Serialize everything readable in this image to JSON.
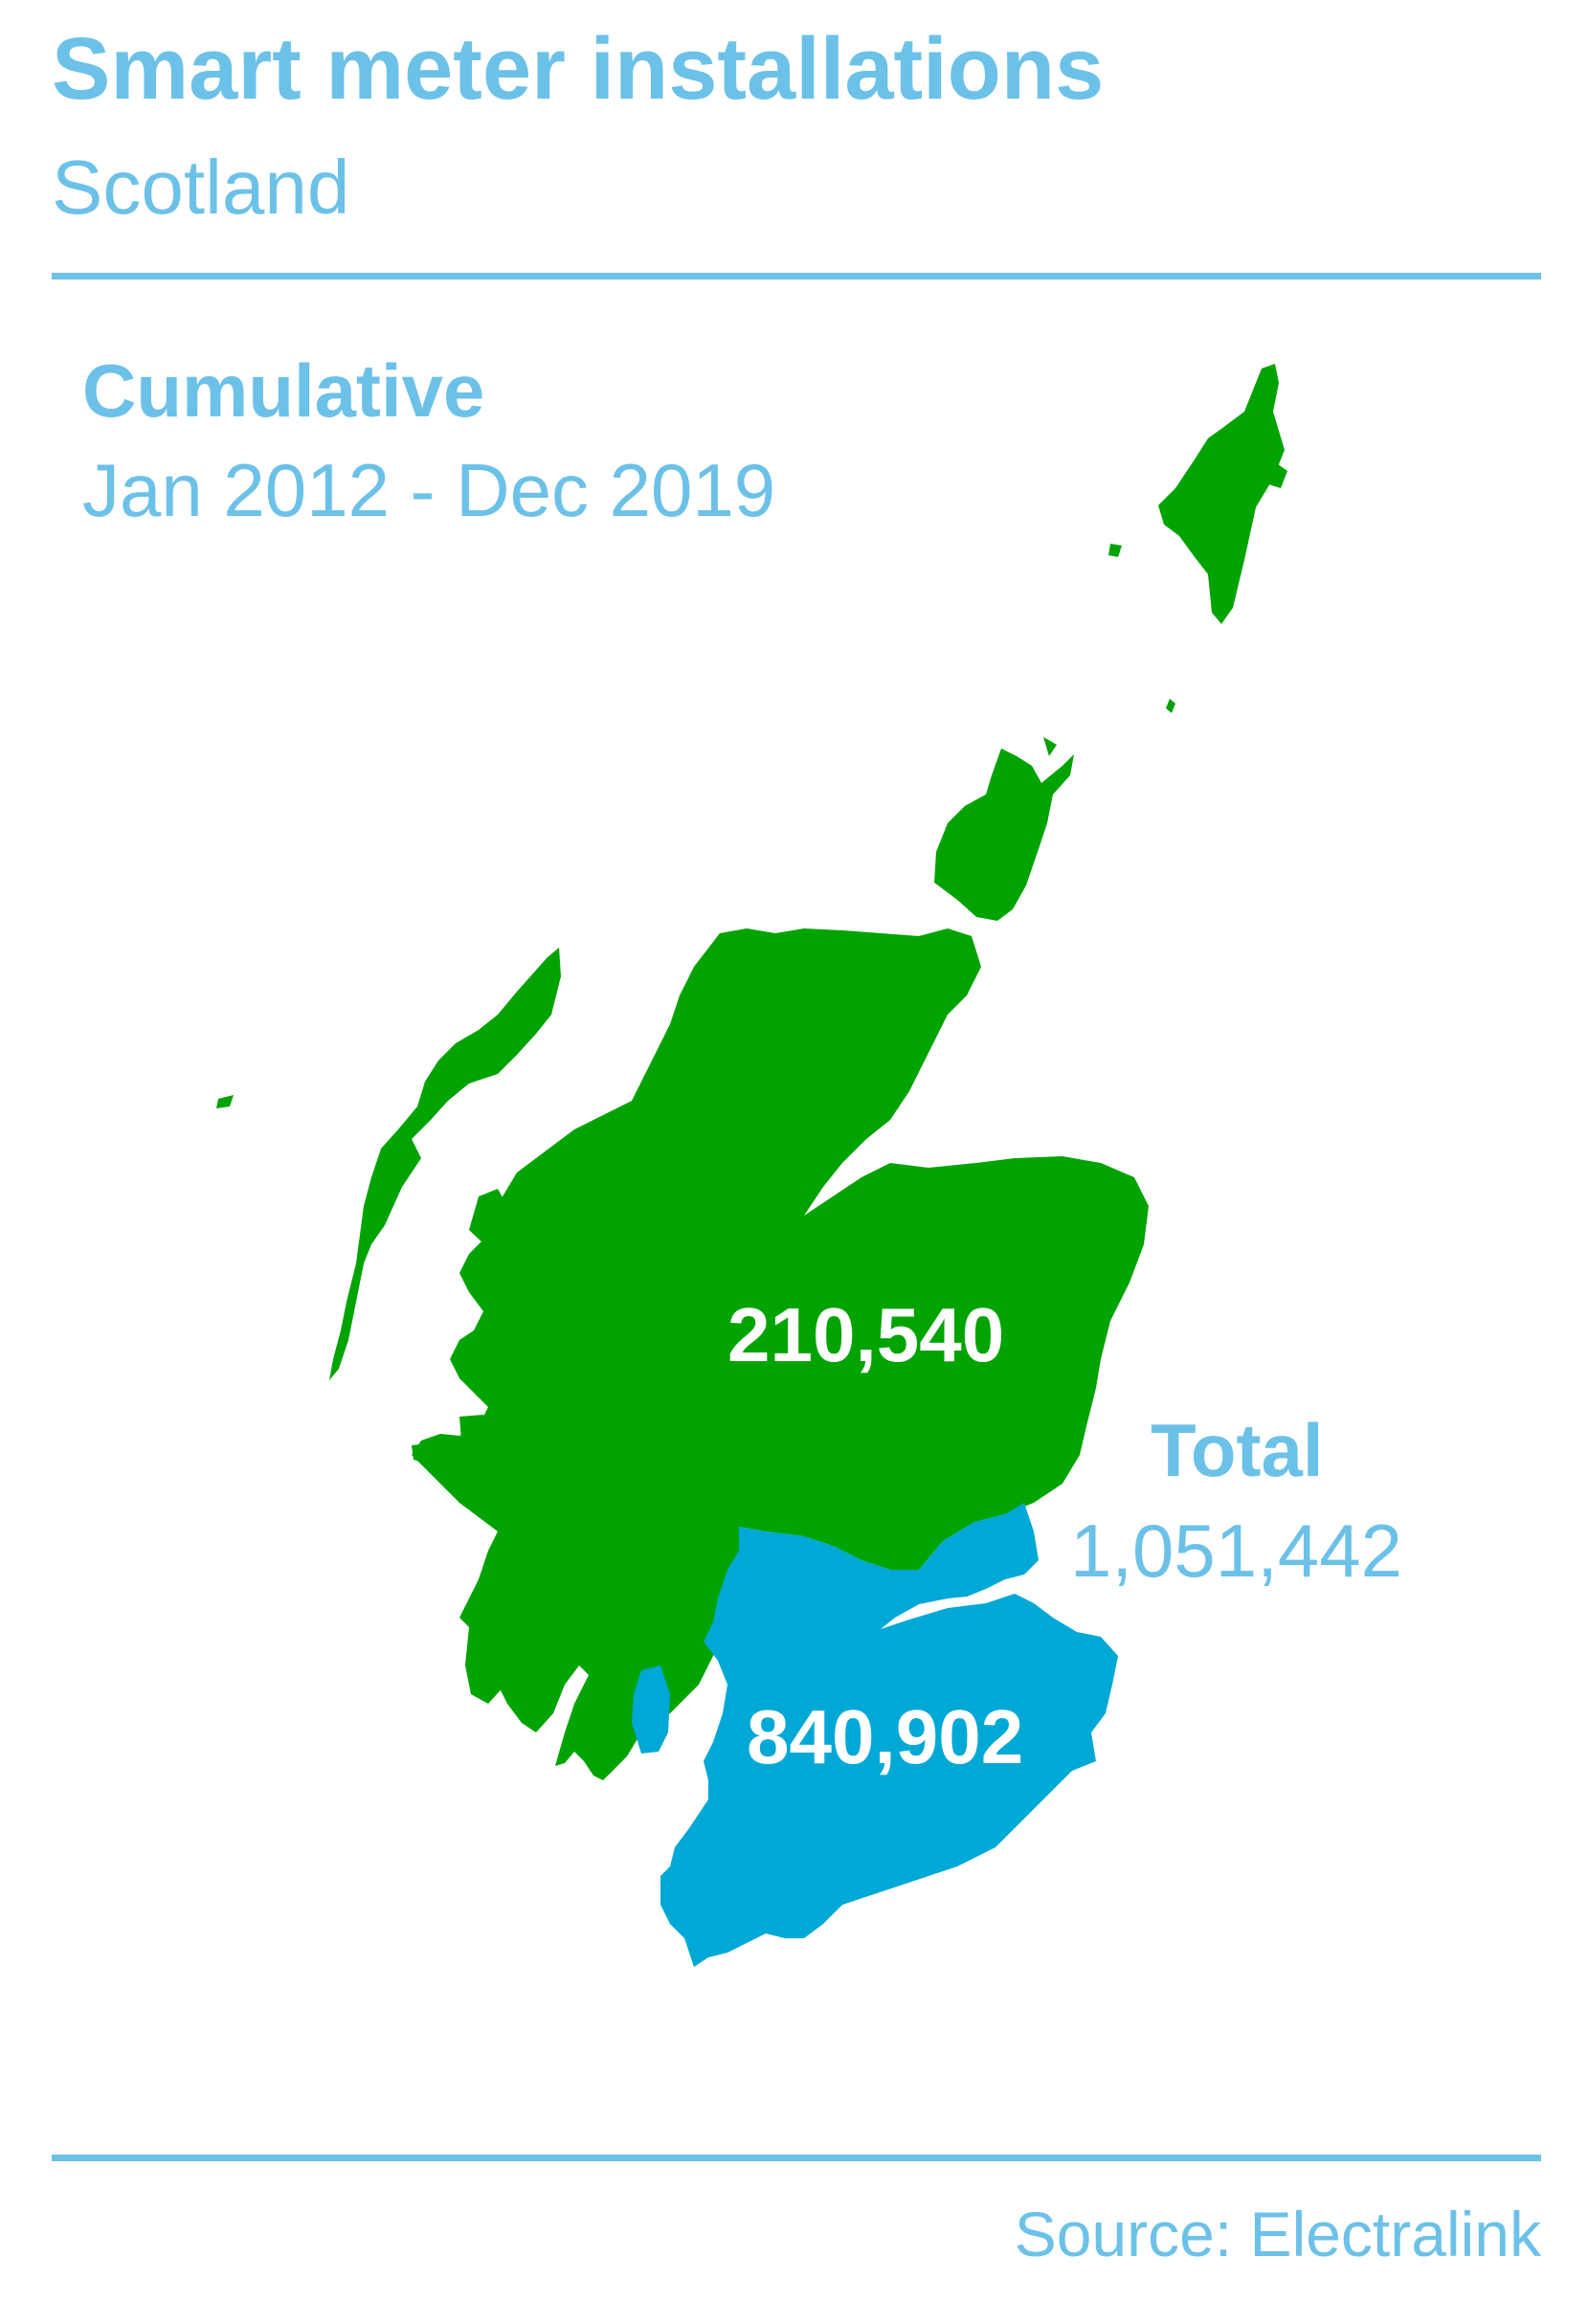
{
  "header": {
    "title": "Smart meter installations",
    "subtitle": "Scotland"
  },
  "period": {
    "label": "Cumulative",
    "range": "Jan 2012 - Dec 2019"
  },
  "regions": [
    {
      "value": "210,540",
      "color": "#00a300"
    },
    {
      "value": "840,902",
      "color": "#00a8d6"
    }
  ],
  "total": {
    "label": "Total",
    "value": "1,051,442"
  },
  "footer": {
    "source": "Source: Electralink"
  },
  "colors": {
    "accent": "#6cc1e8",
    "north_region": "#00a300",
    "south_region": "#00a8d6"
  }
}
